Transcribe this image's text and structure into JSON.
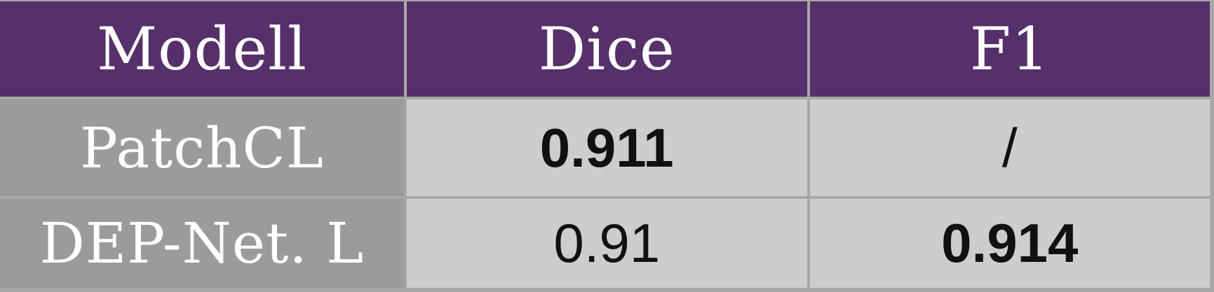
{
  "table": {
    "headers": [
      "Modell",
      "Dice",
      "F1"
    ],
    "rows": [
      {
        "model": "PatchCL",
        "dice": "0.911",
        "f1": "/"
      },
      {
        "model": "DEP-Net. L",
        "dice": "0.91",
        "f1": "0.914"
      }
    ],
    "colors": {
      "header_bg": "#55306a",
      "label_bg": "#9b9b9b",
      "value_bg": "#cdcdcd",
      "grid": "#a7a7a7"
    }
  }
}
